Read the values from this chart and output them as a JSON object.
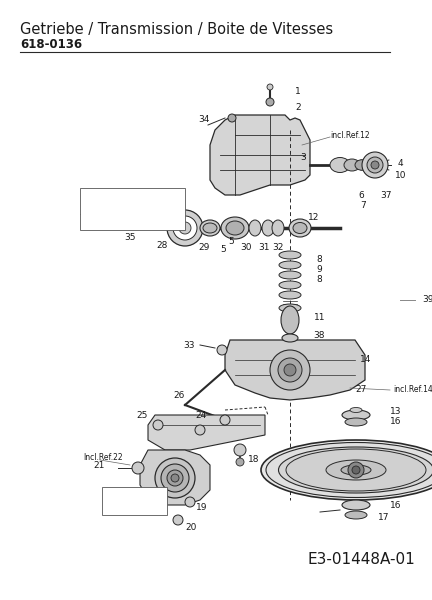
{
  "title": "Getriebe / Transmission / Boite de Vitesses",
  "part_number": "618-0136",
  "diagram_ref": "E3-01448A-01",
  "bg_color": "#ffffff",
  "line_color": "#2a2a2a",
  "text_color": "#1a1a1a",
  "fig_width": 4.32,
  "fig_height": 6.0,
  "dpi": 100,
  "title_fontsize": 10.5,
  "partnumber_fontsize": 8.5,
  "label_fontsize": 6.5,
  "ref_fontsize": 11
}
